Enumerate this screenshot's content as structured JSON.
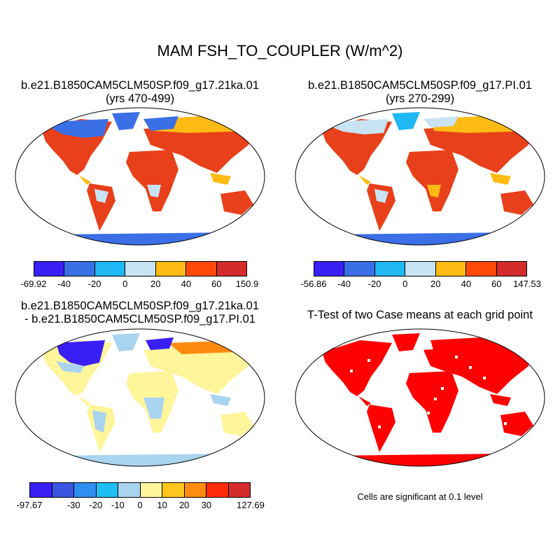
{
  "title": "MAM FSH_TO_COUPLER (W/m^2)",
  "panels": {
    "top_left": {
      "case_name": "b.e21.B1850CAM5CLM50SP.f09_g17.21ka.01",
      "years": "(yrs 470-499)",
      "colorbar": {
        "colors": [
          "#3a1ff5",
          "#3b6fe6",
          "#1fb7f4",
          "#c8e4f4",
          "#ffbb14",
          "#ff4a0a",
          "#d42c2c"
        ],
        "labels": [
          "-69.92",
          "-40",
          "-20",
          "0",
          "20",
          "40",
          "60",
          "150.9"
        ]
      }
    },
    "top_right": {
      "case_name": "b.e21.B1850CAM5CLM50SP.f09_g17.PI.01",
      "years": "(yrs 270-299)",
      "colorbar": {
        "colors": [
          "#3a1ff5",
          "#3b6fe6",
          "#1fb7f4",
          "#c8e4f4",
          "#ffbb14",
          "#ff4a0a",
          "#d42c2c"
        ],
        "labels": [
          "-56.86",
          "-40",
          "-20",
          "0",
          "20",
          "40",
          "60",
          "147.53"
        ]
      }
    },
    "bottom_left": {
      "line1": "b.e21.B1850CAM5CLM50SP.f09_g17.21ka.01",
      "line2": "- b.e21.B1850CAM5CLM50SP.f09_g17.PI.01",
      "colorbar": {
        "colors": [
          "#3a1ff5",
          "#3b55e0",
          "#2f8ff0",
          "#1fbff4",
          "#a8d4f0",
          "#fff59a",
          "#ffc61e",
          "#ff8a10",
          "#ff2a08",
          "#d42c2c"
        ],
        "labels": [
          "-97.67",
          "-30",
          "-20",
          "-10",
          "0",
          "10",
          "20",
          "30",
          "127.69"
        ]
      }
    },
    "bottom_right": {
      "title": "T-Test of two Case means at each grid point",
      "note": "Cells are significant at 0.1 level"
    }
  },
  "map_colors": {
    "ocean": "#ffffff",
    "coast": "#000000",
    "top_land_hot": "#e8401a",
    "top_land_warm": "#ffbb14",
    "top_land_cool": "#c8e4f4",
    "top_land_cold": "#3b6fe6",
    "diff_land": "#fff59a",
    "diff_cool": "#a8d4f0",
    "diff_cold": "#3a1ff5",
    "ttest_land": "#ff0000"
  }
}
